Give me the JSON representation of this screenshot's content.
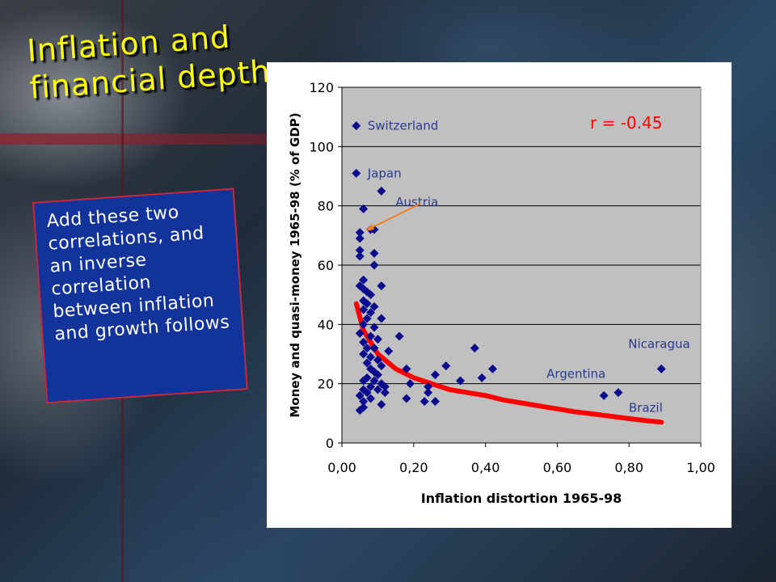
{
  "slide": {
    "title_line1": "Inflation and",
    "title_line2": "financial depth",
    "note_text": "Add these two correlations, and an inverse correlation between inflation and growth follows",
    "colors": {
      "title": "#ffff00",
      "note_bg": "#12339a",
      "note_border": "#c8283a"
    }
  },
  "chart_data": {
    "type": "scatter",
    "title": "",
    "xlabel": "Inflation distortion 1965-98",
    "ylabel": "Money and quasi-money 1965-98 (% of GDP)",
    "xlim": [
      0,
      1
    ],
    "ylim": [
      0,
      120
    ],
    "x_ticks": [
      "0,00",
      "0,20",
      "0,40",
      "0,60",
      "0,80",
      "1,00"
    ],
    "y_ticks": [
      "0",
      "20",
      "40",
      "60",
      "80",
      "100",
      "120"
    ],
    "grid": "horizontal",
    "annotation_r": "r = -0.45",
    "marker_color": "#0a0a8c",
    "curve_color": "#ff0000",
    "label_color": "#2a3b8f",
    "point_labels": [
      {
        "text": "Switzerland",
        "x": 0.04,
        "y": 107
      },
      {
        "text": "Japan",
        "x": 0.04,
        "y": 91
      },
      {
        "text": "Austria",
        "x": 0.12,
        "y": 84
      },
      {
        "text": "Nicaragua",
        "x": 0.89,
        "y": 25
      },
      {
        "text": "Argentina",
        "x": 0.73,
        "y": 16
      },
      {
        "text": "Brazil",
        "x": 0.77,
        "y": 17
      }
    ],
    "points": [
      [
        0.04,
        107
      ],
      [
        0.04,
        91
      ],
      [
        0.11,
        85
      ],
      [
        0.06,
        79
      ],
      [
        0.05,
        71
      ],
      [
        0.05,
        69
      ],
      [
        0.08,
        72
      ],
      [
        0.09,
        72
      ],
      [
        0.05,
        65
      ],
      [
        0.05,
        63
      ],
      [
        0.09,
        64
      ],
      [
        0.09,
        60
      ],
      [
        0.06,
        55
      ],
      [
        0.05,
        53
      ],
      [
        0.11,
        53
      ],
      [
        0.06,
        52
      ],
      [
        0.07,
        51
      ],
      [
        0.08,
        50
      ],
      [
        0.06,
        48
      ],
      [
        0.07,
        47
      ],
      [
        0.09,
        46
      ],
      [
        0.06,
        45
      ],
      [
        0.08,
        44
      ],
      [
        0.07,
        42
      ],
      [
        0.11,
        42
      ],
      [
        0.06,
        40
      ],
      [
        0.09,
        39
      ],
      [
        0.05,
        37
      ],
      [
        0.08,
        36
      ],
      [
        0.1,
        35
      ],
      [
        0.16,
        36
      ],
      [
        0.06,
        34
      ],
      [
        0.07,
        32
      ],
      [
        0.09,
        32
      ],
      [
        0.13,
        31
      ],
      [
        0.06,
        30
      ],
      [
        0.08,
        29
      ],
      [
        0.1,
        28
      ],
      [
        0.07,
        27
      ],
      [
        0.11,
        26
      ],
      [
        0.08,
        25
      ],
      [
        0.09,
        24
      ],
      [
        0.1,
        23
      ],
      [
        0.07,
        22
      ],
      [
        0.06,
        21
      ],
      [
        0.09,
        21
      ],
      [
        0.11,
        20
      ],
      [
        0.12,
        19
      ],
      [
        0.08,
        19
      ],
      [
        0.1,
        18
      ],
      [
        0.06,
        18
      ],
      [
        0.07,
        17
      ],
      [
        0.05,
        16
      ],
      [
        0.12,
        17
      ],
      [
        0.08,
        15
      ],
      [
        0.06,
        14
      ],
      [
        0.11,
        13
      ],
      [
        0.06,
        12
      ],
      [
        0.05,
        11
      ],
      [
        0.18,
        15
      ],
      [
        0.19,
        20
      ],
      [
        0.18,
        25
      ],
      [
        0.24,
        19
      ],
      [
        0.24,
        17
      ],
      [
        0.23,
        14
      ],
      [
        0.26,
        14
      ],
      [
        0.26,
        23
      ],
      [
        0.29,
        26
      ],
      [
        0.33,
        21
      ],
      [
        0.37,
        32
      ],
      [
        0.39,
        22
      ],
      [
        0.42,
        25
      ],
      [
        0.73,
        16
      ],
      [
        0.77,
        17
      ],
      [
        0.89,
        25
      ]
    ],
    "fit_curve": [
      [
        0.04,
        47
      ],
      [
        0.06,
        38
      ],
      [
        0.08,
        34
      ],
      [
        0.1,
        30
      ],
      [
        0.15,
        25
      ],
      [
        0.2,
        22
      ],
      [
        0.25,
        20
      ],
      [
        0.3,
        18
      ],
      [
        0.35,
        17
      ],
      [
        0.4,
        16
      ],
      [
        0.45,
        14.5
      ],
      [
        0.5,
        13.5
      ],
      [
        0.55,
        12.5
      ],
      [
        0.6,
        11.5
      ],
      [
        0.65,
        10.5
      ],
      [
        0.7,
        9.8
      ],
      [
        0.75,
        9
      ],
      [
        0.8,
        8.2
      ],
      [
        0.85,
        7.5
      ],
      [
        0.89,
        7
      ]
    ]
  }
}
